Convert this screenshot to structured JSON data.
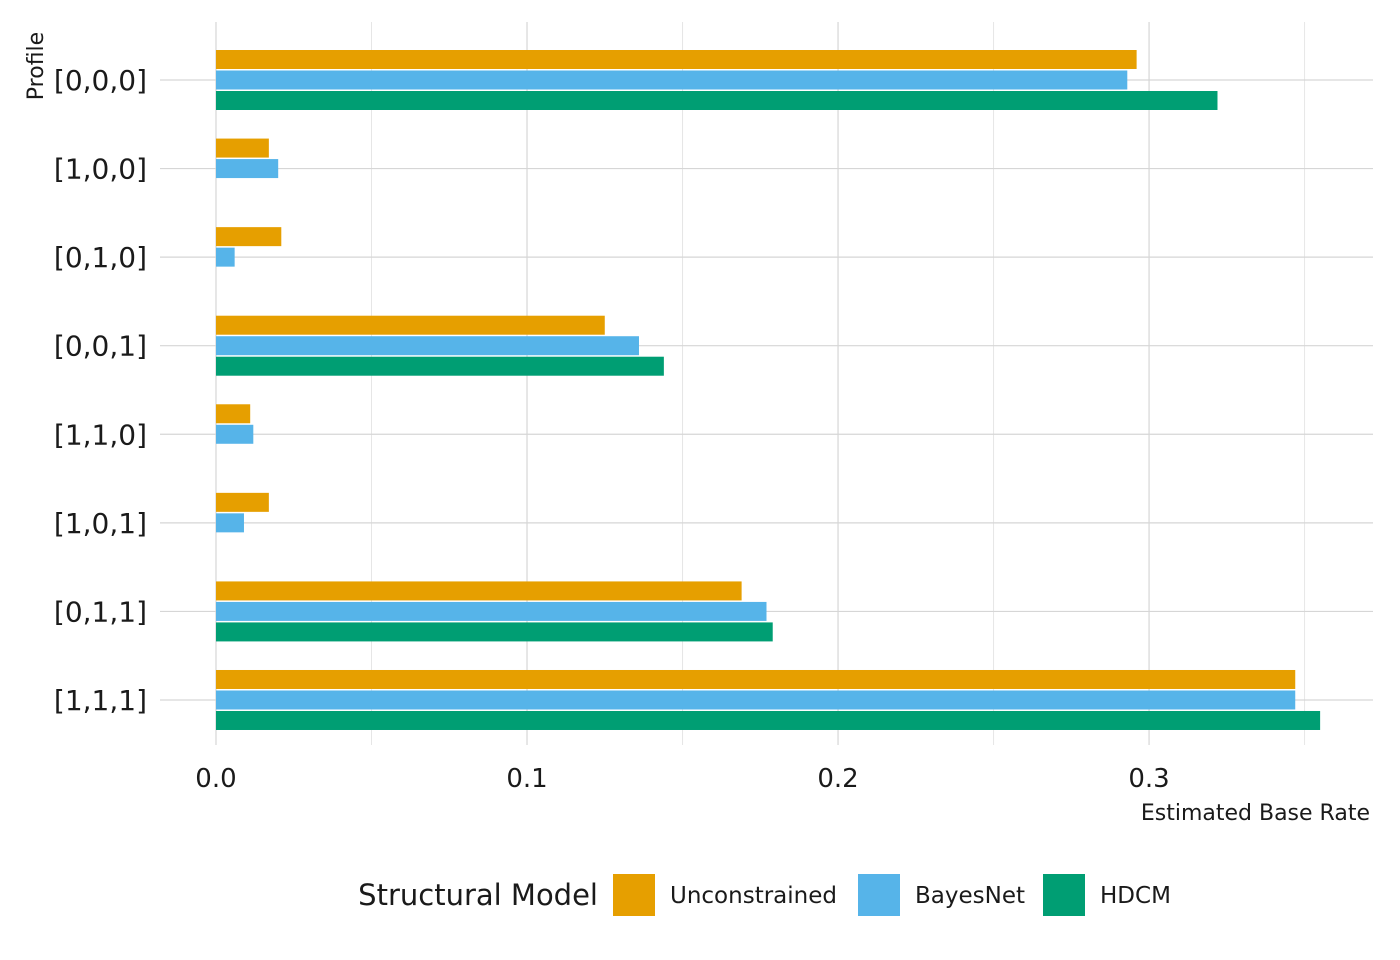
{
  "chart_data": {
    "type": "bar",
    "orientation": "horizontal",
    "categories": [
      "[0,0,0]",
      "[1,0,0]",
      "[0,1,0]",
      "[0,0,1]",
      "[1,1,0]",
      "[1,0,1]",
      "[0,1,1]",
      "[1,1,1]"
    ],
    "series": [
      {
        "name": "Unconstrained",
        "color": "#E69F00",
        "values": [
          0.296,
          0.017,
          0.021,
          0.125,
          0.011,
          0.017,
          0.169,
          0.347
        ]
      },
      {
        "name": "BayesNet",
        "color": "#56B4E9",
        "values": [
          0.293,
          0.02,
          0.006,
          0.136,
          0.012,
          0.009,
          0.177,
          0.347
        ]
      },
      {
        "name": "HDCM",
        "color": "#009E73",
        "values": [
          0.322,
          null,
          null,
          0.144,
          null,
          null,
          0.179,
          0.355
        ]
      }
    ],
    "xlabel": "Estimated Base Rate",
    "ylabel": "Profile",
    "xlim": [
      -0.018,
      0.372
    ],
    "xticks": [
      0.0,
      0.1,
      0.2,
      0.3
    ],
    "xtick_labels": [
      "0.0",
      "0.1",
      "0.2",
      "0.3"
    ],
    "grid": true,
    "legend": {
      "title": "Structural Model",
      "position": "bottom"
    }
  }
}
